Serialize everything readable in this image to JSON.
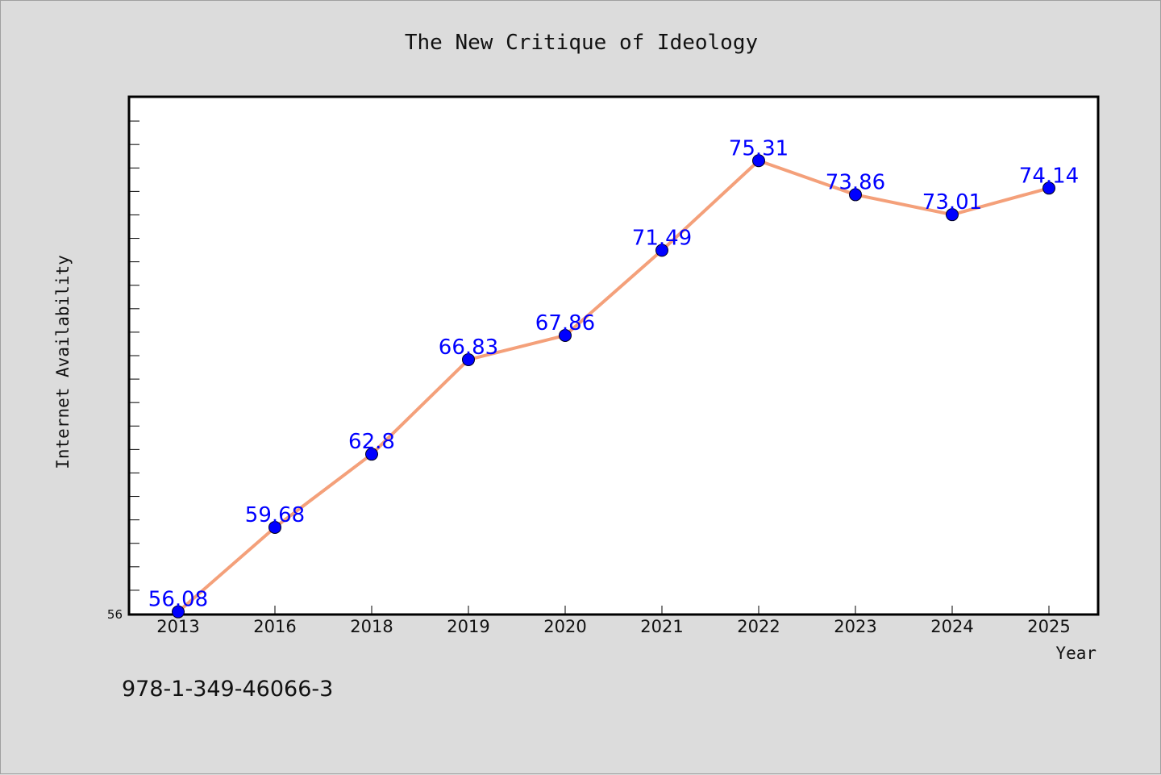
{
  "chart_data": {
    "type": "line",
    "title": "The New Critique of Ideology",
    "xlabel": "Year",
    "ylabel": "Internet Availability",
    "categories": [
      "2013",
      "2016",
      "2018",
      "2019",
      "2020",
      "2021",
      "2022",
      "2023",
      "2024",
      "2025"
    ],
    "values": [
      56.08,
      59.68,
      62.8,
      66.83,
      67.86,
      71.49,
      75.31,
      73.86,
      73.01,
      74.14
    ],
    "data_labels": [
      "56.08",
      "59.68",
      "62.8",
      "66.83",
      "67.86",
      "71.49",
      "75.31",
      "73.86",
      "73.01",
      "74.14"
    ],
    "ylim": [
      56,
      78
    ],
    "y_tick_labels": [
      "56"
    ],
    "grid": false,
    "legend": "none",
    "colors": {
      "line": "#f4a07a",
      "marker": "#0000ff",
      "data_label": "#0000ff",
      "plot_background": "#ffffff",
      "page_background": "#dcdcdc"
    }
  },
  "footer": {
    "isbn": "978-1-349-46066-3"
  }
}
